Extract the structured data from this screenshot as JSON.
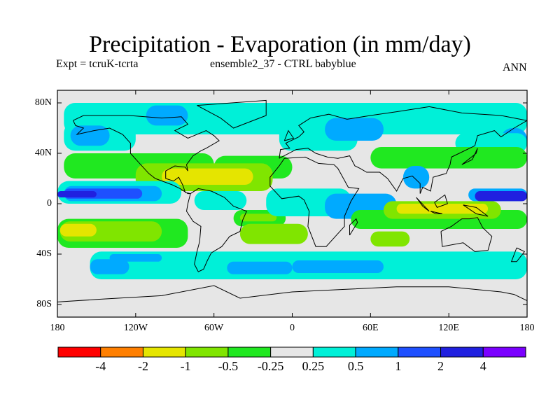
{
  "title": "Precipitation - Evaporation (in mm/day)",
  "subtitle_left": "Expt = tcruK-tcrta",
  "subtitle_center": "ensemble2_37 - CTRL babyblue",
  "subtitle_right": "ANN",
  "map": {
    "projection": "cylindrical-equidistant",
    "lon_range": [
      -180,
      180
    ],
    "lat_range": [
      -90,
      90
    ],
    "x_ticks": [
      {
        "label": "180",
        "lon": -180
      },
      {
        "label": "120W",
        "lon": -120
      },
      {
        "label": "60W",
        "lon": -60
      },
      {
        "label": "0",
        "lon": 0
      },
      {
        "label": "60E",
        "lon": 60
      },
      {
        "label": "120E",
        "lon": 120
      },
      {
        "label": "180",
        "lon": 180
      }
    ],
    "y_ticks": [
      {
        "label": "80N",
        "lat": 80
      },
      {
        "label": "40N",
        "lat": 40
      },
      {
        "label": "0",
        "lat": 0
      },
      {
        "label": "40S",
        "lat": -40
      },
      {
        "label": "80S",
        "lat": -80
      }
    ],
    "background_color": "#e6e6e6",
    "regions": [
      {
        "level": 6,
        "lon0": -155,
        "lat0": -60,
        "lon1": 180,
        "lat1": -38
      },
      {
        "level": 7,
        "lon0": -155,
        "lat0": -56,
        "lon1": -125,
        "lat1": -44
      },
      {
        "level": 7,
        "lon0": -50,
        "lat0": -56,
        "lon1": 0,
        "lat1": -46
      },
      {
        "level": 7,
        "lon0": 0,
        "lat0": -55,
        "lon1": 70,
        "lat1": -45
      },
      {
        "level": 6,
        "lon0": -175,
        "lat0": 55,
        "lon1": 180,
        "lat1": 80
      },
      {
        "level": 6,
        "lon0": -175,
        "lat0": 42,
        "lon1": -120,
        "lat1": 65
      },
      {
        "level": 7,
        "lon0": -170,
        "lat0": 46,
        "lon1": -140,
        "lat1": 62
      },
      {
        "level": 7,
        "lon0": -112,
        "lat0": 62,
        "lon1": -80,
        "lat1": 78
      },
      {
        "level": 6,
        "lon0": -10,
        "lat0": 42,
        "lon1": 50,
        "lat1": 68
      },
      {
        "level": 7,
        "lon0": 25,
        "lat0": 50,
        "lon1": 70,
        "lat1": 68
      },
      {
        "level": 7,
        "lon0": 160,
        "lat0": 40,
        "lon1": 180,
        "lat1": 60
      },
      {
        "level": 6,
        "lon0": 125,
        "lat0": 40,
        "lon1": 180,
        "lat1": 56
      },
      {
        "level": 4,
        "lon0": -175,
        "lat0": 20,
        "lon1": -60,
        "lat1": 40
      },
      {
        "level": 4,
        "lon0": -60,
        "lat0": 20,
        "lon1": 0,
        "lat1": 38
      },
      {
        "level": 4,
        "lon0": 60,
        "lat0": 28,
        "lon1": 180,
        "lat1": 45
      },
      {
        "level": 3,
        "lon0": -120,
        "lat0": 10,
        "lon1": -15,
        "lat1": 32
      },
      {
        "level": 2,
        "lon0": -100,
        "lat0": 15,
        "lon1": -30,
        "lat1": 28
      },
      {
        "level": 4,
        "lon0": -45,
        "lat0": -18,
        "lon1": -5,
        "lat1": -5
      },
      {
        "level": 3,
        "lon0": -40,
        "lat0": -14,
        "lon1": -12,
        "lat1": -8
      },
      {
        "level": 6,
        "lon0": -180,
        "lat0": 0,
        "lon1": -85,
        "lat1": 18
      },
      {
        "level": 7,
        "lon0": -175,
        "lat0": 2,
        "lon1": -100,
        "lat1": 14
      },
      {
        "level": 8,
        "lon0": -175,
        "lat0": 4,
        "lon1": -115,
        "lat1": 12
      },
      {
        "level": 9,
        "lon0": -180,
        "lat0": 5,
        "lon1": -150,
        "lat1": 10
      },
      {
        "level": 6,
        "lon0": -75,
        "lat0": -5,
        "lon1": -35,
        "lat1": 10
      },
      {
        "level": 6,
        "lon0": -20,
        "lat0": -10,
        "lon1": 45,
        "lat1": 12
      },
      {
        "level": 7,
        "lon0": 25,
        "lat0": -12,
        "lon1": 80,
        "lat1": 8
      },
      {
        "level": 7,
        "lon0": 85,
        "lat0": 12,
        "lon1": 105,
        "lat1": 30
      },
      {
        "level": 4,
        "lon0": 45,
        "lat0": -20,
        "lon1": 180,
        "lat1": -5
      },
      {
        "level": 3,
        "lon0": 70,
        "lat0": -12,
        "lon1": 160,
        "lat1": 2
      },
      {
        "level": 2,
        "lon0": 80,
        "lat0": -8,
        "lon1": 150,
        "lat1": 0
      },
      {
        "level": 7,
        "lon0": 135,
        "lat0": 2,
        "lon1": 180,
        "lat1": 12
      },
      {
        "level": 9,
        "lon0": 140,
        "lat0": 2,
        "lon1": 180,
        "lat1": 10
      },
      {
        "level": 4,
        "lon0": -180,
        "lat0": -35,
        "lon1": -80,
        "lat1": -12
      },
      {
        "level": 3,
        "lon0": -178,
        "lat0": -30,
        "lon1": -100,
        "lat1": -14
      },
      {
        "level": 2,
        "lon0": -178,
        "lat0": -26,
        "lon1": -150,
        "lat1": -16
      },
      {
        "level": 3,
        "lon0": -40,
        "lat0": -32,
        "lon1": 12,
        "lat1": -16
      },
      {
        "level": 3,
        "lon0": 60,
        "lat0": -34,
        "lon1": 90,
        "lat1": -22
      },
      {
        "level": 7,
        "lon0": -140,
        "lat0": -46,
        "lon1": -100,
        "lat1": -40
      },
      {
        "level": 5,
        "lon0": 20,
        "lat0": 20,
        "lon1": 50,
        "lat1": 32
      }
    ]
  },
  "colorbar": {
    "colors": [
      "#ff0000",
      "#ff7f00",
      "#e5e500",
      "#80e500",
      "#20e820",
      "#e6e6e6",
      "#00f0d8",
      "#00aaff",
      "#1e50ff",
      "#2020e0",
      "#7b00ff"
    ],
    "tick_labels": [
      "-4",
      "-2",
      "-1",
      "-0.5",
      "-0.25",
      "0.25",
      "0.5",
      "1",
      "2",
      "4"
    ]
  }
}
